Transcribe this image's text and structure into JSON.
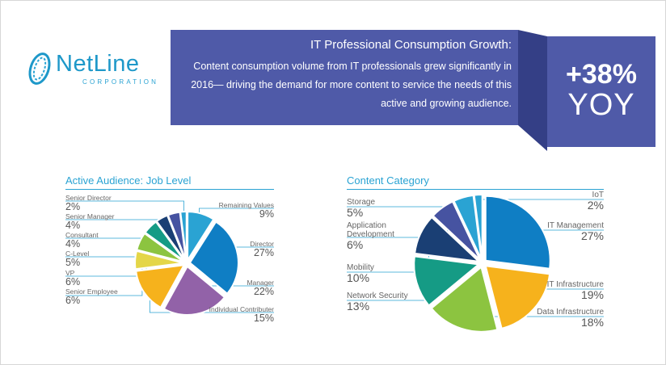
{
  "logo": {
    "name": "NetLine",
    "subtitle": "CORPORATION"
  },
  "banner": {
    "title": "IT Professional Consumption Growth:",
    "body": "Content consumption volume from IT professionals grew significantly in 2016— driving the demand for more content to service the needs of this active and growing audience."
  },
  "stat": {
    "value": "+38%",
    "label": "YOY"
  },
  "colors": {
    "accent": "#2aa3d3",
    "banner": "#4f5aa8",
    "banner_fold": "#343f86"
  },
  "chart_data": [
    {
      "type": "pie",
      "title": "Active Audience: Job Level",
      "series": [
        {
          "name": "Remaining Values",
          "value": 9,
          "display": "9%",
          "color": "#2aa3d3"
        },
        {
          "name": "Director",
          "value": 27,
          "display": "27%",
          "color": "#0f7ec4"
        },
        {
          "name": "Manager",
          "value": 22,
          "display": "22%",
          "color": "#9262a8"
        },
        {
          "name": "Individual Contributer",
          "value": 15,
          "display": "15%",
          "color": "#f6b21c"
        },
        {
          "name": "Senior Employee",
          "value": 6,
          "display": "6%",
          "color": "#e4d648"
        },
        {
          "name": "VP",
          "value": 6,
          "display": "6%",
          "color": "#8cc440"
        },
        {
          "name": "C-Level",
          "value": 5,
          "display": "5%",
          "color": "#159b85"
        },
        {
          "name": "Consultant",
          "value": 4,
          "display": "4%",
          "color": "#1a3f74"
        },
        {
          "name": "Senior Manager",
          "value": 4,
          "display": "4%",
          "color": "#4653a1"
        },
        {
          "name": "Senior Director",
          "value": 2,
          "display": "2%",
          "color": "#2aa3d3"
        }
      ]
    },
    {
      "type": "pie",
      "title": "Content Category",
      "series": [
        {
          "name": "IT Management",
          "value": 27,
          "display": "27%",
          "color": "#0f7ec4"
        },
        {
          "name": "IT Infrastructure",
          "value": 19,
          "display": "19%",
          "color": "#f6b21c"
        },
        {
          "name": "Data Infrastructure",
          "value": 18,
          "display": "18%",
          "color": "#8cc440"
        },
        {
          "name": "Network Security",
          "value": 13,
          "display": "13%",
          "color": "#159b85"
        },
        {
          "name": "Mobility",
          "value": 10,
          "display": "10%",
          "color": "#1a3f74"
        },
        {
          "name": "Application Development",
          "value": 6,
          "display": "6%",
          "color": "#4653a1"
        },
        {
          "name": "Storage",
          "value": 5,
          "display": "5%",
          "color": "#2aa3d3"
        },
        {
          "name": "IoT",
          "value": 2,
          "display": "2%",
          "color": "#2aa3d3"
        }
      ]
    }
  ]
}
